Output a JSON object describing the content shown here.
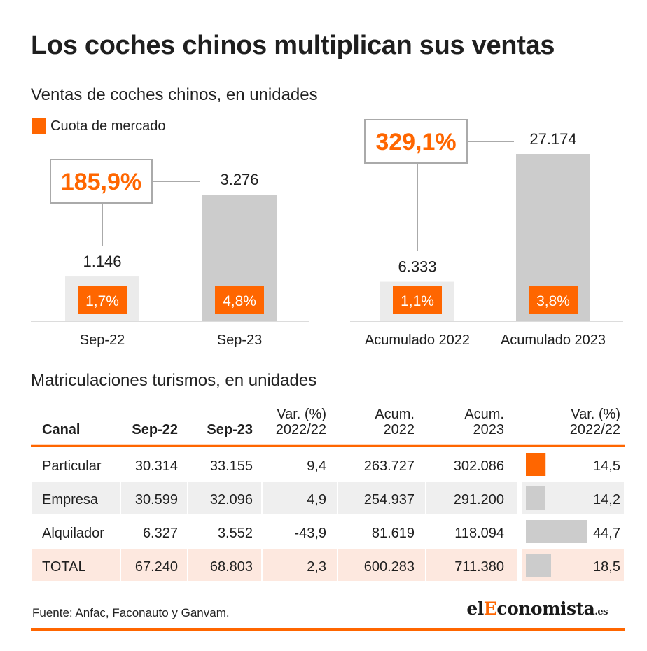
{
  "title": "Los coches chinos multiplican sus ventas",
  "subtitle": "Ventas de coches chinos, en unidades",
  "legend": {
    "label": "Cuota de mercado",
    "color": "#ff6600"
  },
  "chart_data": [
    {
      "type": "bar",
      "categories": [
        "Sep-22",
        "Sep-23"
      ],
      "values": [
        1146,
        3276
      ],
      "value_labels": [
        "1.146",
        "3.276"
      ],
      "share_labels": [
        "1,7%",
        "4,8%"
      ],
      "growth_label": "185,9%",
      "colors": [
        "#ebebeb",
        "#cccccc"
      ],
      "ylim": [
        0,
        3276
      ]
    },
    {
      "type": "bar",
      "categories": [
        "Acumulado 2022",
        "Acumulado 2023"
      ],
      "values": [
        6333,
        27174
      ],
      "value_labels": [
        "6.333",
        "27.174"
      ],
      "share_labels": [
        "1,1%",
        "3,8%"
      ],
      "growth_label": "329,1%",
      "colors": [
        "#ebebeb",
        "#cccccc"
      ],
      "ylim": [
        0,
        27174
      ]
    }
  ],
  "table": {
    "title": "Matriculaciones turismos, en unidades",
    "headers": [
      "Canal",
      "Sep-22",
      "Sep-23",
      "Var. (%)\n2022/22",
      "Acum.\n2022",
      "Acum.\n2023",
      "Var. (%)\n2022/22"
    ],
    "rows": [
      {
        "cells": [
          "Particular",
          "30.314",
          "33.155",
          "9,4",
          "263.727",
          "302.086",
          "14,5"
        ],
        "bar_value": 14.5,
        "bar_color": "#ff6600"
      },
      {
        "cells": [
          "Empresa",
          "30.599",
          "32.096",
          "4,9",
          "254.937",
          "291.200",
          "14,2"
        ],
        "bar_value": 14.2,
        "bar_color": "#cccccc"
      },
      {
        "cells": [
          "Alquilador",
          "6.327",
          "3.552",
          "-43,9",
          "81.619",
          "118.094",
          "44,7"
        ],
        "bar_value": 44.7,
        "bar_color": "#cccccc"
      },
      {
        "cells": [
          "TOTAL",
          "67.240",
          "68.803",
          "2,3",
          "600.283",
          "711.380",
          "18,5"
        ],
        "bar_value": 18.5,
        "bar_color": "#cccccc"
      }
    ]
  },
  "source": "Fuente: Anfac, Faconauto y Ganvam.",
  "logo": {
    "pre": "el",
    "accent": "E",
    "rest": "conomista",
    "suffix": ".es"
  },
  "colors": {
    "accent": "#ff6600",
    "row_shade": "#efefef",
    "total_shade": "#fde8df",
    "divider": "#ff6600"
  }
}
